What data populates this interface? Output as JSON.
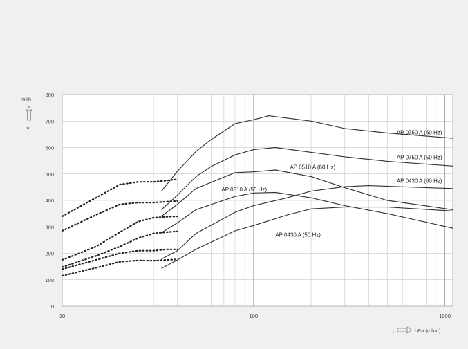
{
  "chart_data": {
    "type": "line",
    "x_scale": "log",
    "xlim": [
      10,
      1100
    ],
    "ylim": [
      0,
      800
    ],
    "grid": true,
    "ylabel": "m³/h",
    "xlabel": "hPa (mbar)",
    "xlabel_prefix": "p",
    "x_tick_labels": [
      {
        "value": 10,
        "label": "10"
      },
      {
        "value": 100,
        "label": "100"
      },
      {
        "value": 1000,
        "label": "1000"
      }
    ],
    "y_ticks": [
      0,
      100,
      200,
      300,
      400,
      500,
      600,
      700,
      800
    ],
    "series": [
      {
        "name": "AP 0750 A (60 Hz)",
        "solid": [
          [
            33,
            435
          ],
          [
            40,
            510
          ],
          [
            50,
            585
          ],
          [
            60,
            630
          ],
          [
            80,
            690
          ],
          [
            100,
            705
          ],
          [
            120,
            720
          ],
          [
            200,
            700
          ],
          [
            300,
            672
          ],
          [
            500,
            655
          ],
          [
            1100,
            635
          ]
        ],
        "dotted": [
          [
            10,
            340
          ],
          [
            15,
            410
          ],
          [
            20,
            460
          ],
          [
            25,
            470
          ],
          [
            30,
            470
          ],
          [
            35,
            475
          ],
          [
            40,
            480
          ]
        ]
      },
      {
        "name": "AP 0750 A (50 Hz)",
        "solid": [
          [
            33,
            365
          ],
          [
            40,
            420
          ],
          [
            50,
            490
          ],
          [
            60,
            528
          ],
          [
            80,
            572
          ],
          [
            100,
            592
          ],
          [
            130,
            600
          ],
          [
            200,
            582
          ],
          [
            300,
            565
          ],
          [
            500,
            548
          ],
          [
            1100,
            530
          ]
        ],
        "dotted": [
          [
            10,
            285
          ],
          [
            15,
            345
          ],
          [
            20,
            385
          ],
          [
            25,
            392
          ],
          [
            30,
            392
          ],
          [
            35,
            395
          ],
          [
            40,
            398
          ]
        ]
      },
      {
        "name": "AP 0510 A (60 Hz)",
        "solid": [
          [
            33,
            340
          ],
          [
            40,
            385
          ],
          [
            50,
            445
          ],
          [
            80,
            505
          ],
          [
            100,
            508
          ],
          [
            130,
            515
          ],
          [
            200,
            490
          ],
          [
            300,
            448
          ],
          [
            500,
            400
          ],
          [
            1100,
            365
          ]
        ],
        "dotted": [
          [
            10,
            175
          ],
          [
            15,
            225
          ],
          [
            20,
            280
          ],
          [
            25,
            320
          ],
          [
            30,
            335
          ],
          [
            35,
            338
          ],
          [
            40,
            340
          ]
        ]
      },
      {
        "name": "AP 0510 A (50 Hz)",
        "solid": [
          [
            33,
            278
          ],
          [
            40,
            315
          ],
          [
            50,
            365
          ],
          [
            80,
            415
          ],
          [
            100,
            428
          ],
          [
            130,
            430
          ],
          [
            200,
            410
          ],
          [
            300,
            380
          ],
          [
            500,
            350
          ],
          [
            1100,
            295
          ]
        ],
        "dotted": [
          [
            10,
            148
          ],
          [
            15,
            190
          ],
          [
            20,
            225
          ],
          [
            25,
            258
          ],
          [
            30,
            275
          ],
          [
            35,
            280
          ],
          [
            40,
            283
          ]
        ]
      },
      {
        "name": "AP 0430 A (60 Hz)",
        "solid": [
          [
            33,
            178
          ],
          [
            40,
            210
          ],
          [
            50,
            275
          ],
          [
            80,
            355
          ],
          [
            100,
            380
          ],
          [
            150,
            410
          ],
          [
            200,
            435
          ],
          [
            300,
            452
          ],
          [
            400,
            456
          ],
          [
            1100,
            445
          ]
        ],
        "dotted": [
          [
            10,
            140
          ],
          [
            15,
            175
          ],
          [
            20,
            200
          ],
          [
            25,
            210
          ],
          [
            30,
            210
          ],
          [
            35,
            215
          ],
          [
            40,
            215
          ]
        ]
      },
      {
        "name": "AP 0430 A (50 Hz)",
        "solid": [
          [
            33,
            143
          ],
          [
            40,
            175
          ],
          [
            50,
            215
          ],
          [
            80,
            285
          ],
          [
            100,
            305
          ],
          [
            150,
            345
          ],
          [
            200,
            368
          ],
          [
            300,
            375
          ],
          [
            500,
            375
          ],
          [
            1100,
            360
          ]
        ],
        "dotted": [
          [
            10,
            115
          ],
          [
            15,
            145
          ],
          [
            20,
            168
          ],
          [
            25,
            173
          ],
          [
            30,
            172
          ],
          [
            35,
            175
          ],
          [
            40,
            177
          ]
        ]
      }
    ],
    "annotations": [
      {
        "text": "AP 0750 A (60 Hz)",
        "x": 560,
        "y": 658
      },
      {
        "text": "AP 0750 A (50 Hz)",
        "x": 560,
        "y": 563
      },
      {
        "text": "AP 0510 A (60 Hz)",
        "x": 155,
        "y": 527
      },
      {
        "text": "AP 0430 A (60 Hz)",
        "x": 560,
        "y": 475
      },
      {
        "text": "AP 0510 A (50 Hz)",
        "x": 68,
        "y": 442
      },
      {
        "text": "AP 0430 A (50 Hz)",
        "x": 130,
        "y": 270
      }
    ]
  }
}
